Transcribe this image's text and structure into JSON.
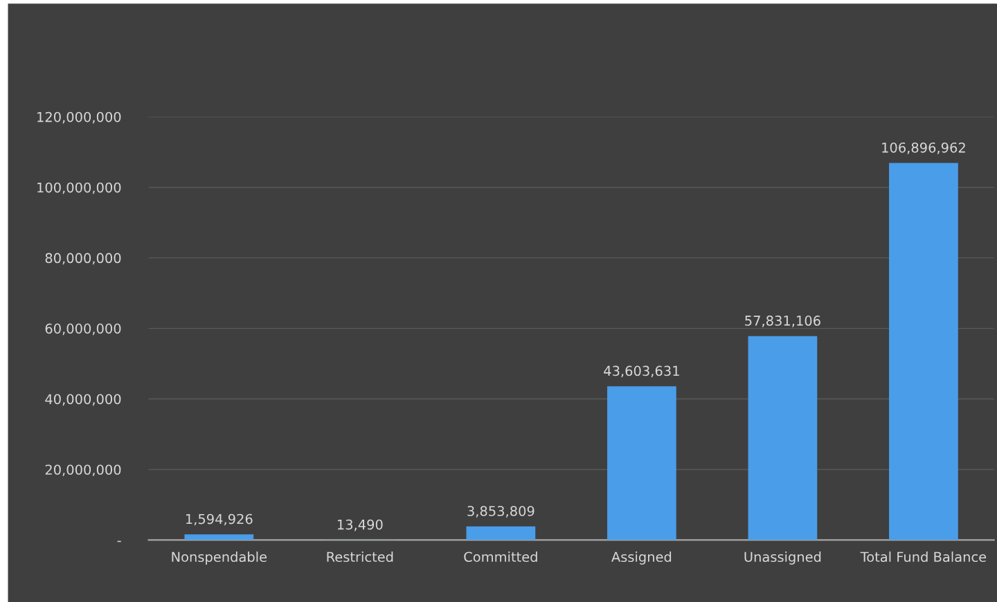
{
  "chart_data": {
    "type": "bar",
    "categories": [
      "Nonspendable",
      "Restricted",
      "Committed",
      "Assigned",
      "Unassigned",
      "Total Fund Balance"
    ],
    "values": [
      1594926,
      13490,
      3853809,
      43603631,
      57831106,
      106896962
    ],
    "value_labels": [
      "1,594,926",
      "13,490",
      "3,853,809",
      "43,603,631",
      "57,831,106",
      "106,896,962"
    ],
    "color": "#4a9de9",
    "ylim": [
      0,
      120000000
    ],
    "yticks": [
      {
        "value": 0,
        "label": "-"
      },
      {
        "value": 20000000,
        "label": "20,000,000"
      },
      {
        "value": 40000000,
        "label": "40,000,000"
      },
      {
        "value": 60000000,
        "label": "60,000,000"
      },
      {
        "value": 80000000,
        "label": "80,000,000"
      },
      {
        "value": 100000000,
        "label": "100,000,000"
      },
      {
        "value": 120000000,
        "label": "120,000,000"
      }
    ],
    "grid": "y",
    "legend": false
  }
}
